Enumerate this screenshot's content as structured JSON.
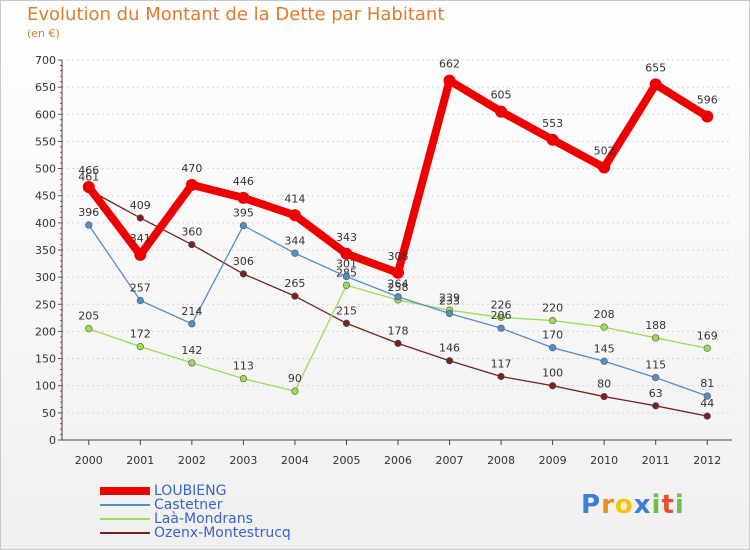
{
  "title": "Evolution du Montant de la Dette par Habitant",
  "subtitle": "(en €)",
  "chart_data": {
    "type": "line",
    "title": "Evolution du Montant de la Dette par Habitant",
    "ylabel": "(en €)",
    "ylim": [
      0,
      700
    ],
    "yticks": [
      0,
      50,
      100,
      150,
      200,
      250,
      300,
      350,
      400,
      450,
      500,
      550,
      600,
      650,
      700
    ],
    "categories": [
      "2000",
      "2001",
      "2002",
      "2003",
      "2004",
      "2005",
      "2006",
      "2007",
      "2008",
      "2009",
      "2010",
      "2011",
      "2012"
    ],
    "series": [
      {
        "name": "LOUBIENG",
        "color": "#ee0000",
        "values": [
          466,
          341,
          470,
          446,
          414,
          343,
          308,
          662,
          605,
          553,
          502,
          655,
          596
        ],
        "labels": [
          "466",
          "341",
          "470",
          "446",
          "414",
          "343",
          "308",
          "662",
          "605",
          "553",
          "502",
          "655",
          "596"
        ]
      },
      {
        "name": "Castetner",
        "color": "#4f8fcc",
        "values": [
          396,
          257,
          214,
          395,
          344,
          301,
          264,
          233,
          206,
          170,
          145,
          115,
          81
        ],
        "labels": [
          "396",
          "257",
          "214",
          "395",
          "344",
          "301",
          "264",
          "233",
          "206",
          "170",
          "145",
          "115",
          "81"
        ]
      },
      {
        "name": "Laà-Mondrans",
        "color": "#99dd55",
        "values": [
          205,
          172,
          142,
          113,
          90,
          285,
          258,
          239,
          226,
          220,
          208,
          188,
          169
        ],
        "labels": [
          "205",
          "172",
          "142",
          "113",
          "90",
          "285",
          "258",
          "239",
          "226",
          "220",
          "208",
          "188",
          "169"
        ]
      },
      {
        "name": "Ozenx-Montestrucq",
        "color": "#7a2020",
        "values": [
          461,
          409,
          360,
          306,
          265,
          215,
          178,
          146,
          117,
          100,
          80,
          63,
          44
        ],
        "labels": [
          "461",
          "409",
          "360",
          "306",
          "265",
          "215",
          "178",
          "146",
          "117",
          "100",
          "80",
          "63",
          "44"
        ]
      }
    ]
  },
  "legend": [
    {
      "label": "LOUBIENG",
      "color": "#ee0000"
    },
    {
      "label": "Castetner",
      "color": "#4f8fcc"
    },
    {
      "label": "Laà-Mondrans",
      "color": "#99dd55"
    },
    {
      "label": "Ozenx-Montestrucq",
      "color": "#7a2020"
    }
  ],
  "logo": {
    "text": "Proxiti"
  }
}
